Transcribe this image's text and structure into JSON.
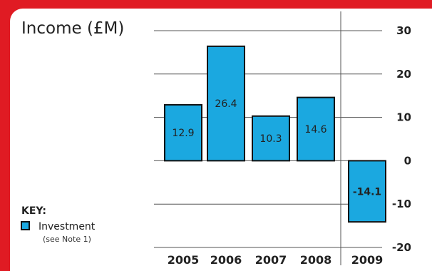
{
  "colors": {
    "background": "#e01b23",
    "panel": "#ffffff",
    "bar": "#1ba8e0",
    "bar_outline": "#111111",
    "grid": "#555555"
  },
  "chart_data": {
    "type": "bar",
    "title": "Income (£M)",
    "categories": [
      "2005",
      "2006",
      "2007",
      "2008",
      "2009"
    ],
    "values": [
      12.9,
      26.4,
      10.3,
      14.6,
      -14.1
    ],
    "value_labels": [
      "12.9",
      "26.4",
      "10.3",
      "14.6",
      "-14.1"
    ],
    "bold_value_labels": [
      false,
      false,
      false,
      false,
      true
    ],
    "yticks": [
      30,
      20,
      10,
      0,
      -10,
      -20
    ],
    "ylim": [
      -20,
      30
    ],
    "grid": true,
    "legend": {
      "title": "KEY:",
      "label": "Investment",
      "note": "(see Note 1)",
      "position": "bottom-left"
    }
  }
}
